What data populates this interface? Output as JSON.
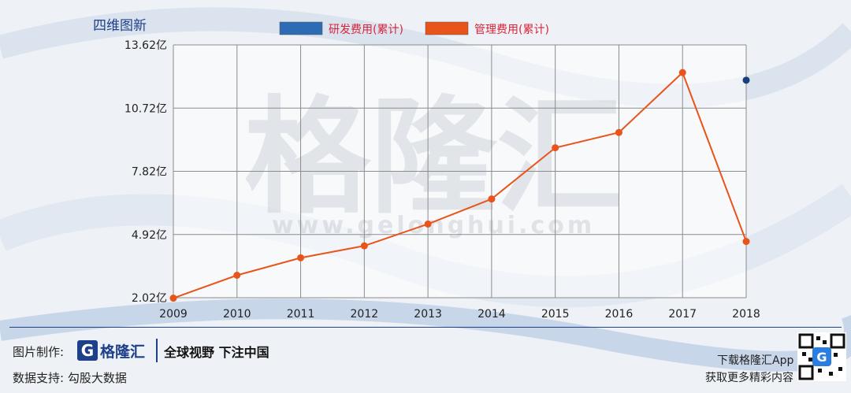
{
  "brand_corner": "四维图新",
  "watermark": {
    "text_cn": "格隆汇",
    "text_url": "www.gelonghui.com"
  },
  "chart_data": {
    "type": "line",
    "categories": [
      "2009",
      "2010",
      "2011",
      "2012",
      "2013",
      "2014",
      "2015",
      "2016",
      "2017",
      "2018"
    ],
    "series": [
      {
        "name": "研发费用(累计)",
        "color": "#2e6bb5",
        "values": [
          null,
          null,
          null,
          null,
          null,
          null,
          null,
          null,
          null,
          12.0
        ]
      },
      {
        "name": "管理费用(累计)",
        "color": "#e8541a",
        "values": [
          2.0,
          3.05,
          3.85,
          4.4,
          5.4,
          6.55,
          8.9,
          9.6,
          12.35,
          4.6
        ]
      }
    ],
    "yticks": [
      "2.02亿",
      "4.92亿",
      "7.82亿",
      "10.72亿",
      "13.62亿"
    ],
    "ytick_values": [
      2.02,
      4.92,
      7.82,
      10.72,
      13.62
    ],
    "ylim": [
      2.02,
      13.62
    ],
    "grid": true,
    "legend_position": "top-center",
    "title": "",
    "xlabel": "",
    "ylabel": ""
  },
  "footer": {
    "made_by_label": "图片制作:",
    "logo_name": "格隆汇",
    "logo_letter": "G",
    "slogan": "全球视野 下注中国",
    "data_support": "数据支持: 勾股大数据",
    "download": "下载格隆汇App",
    "more": "获取更多精彩内容"
  }
}
